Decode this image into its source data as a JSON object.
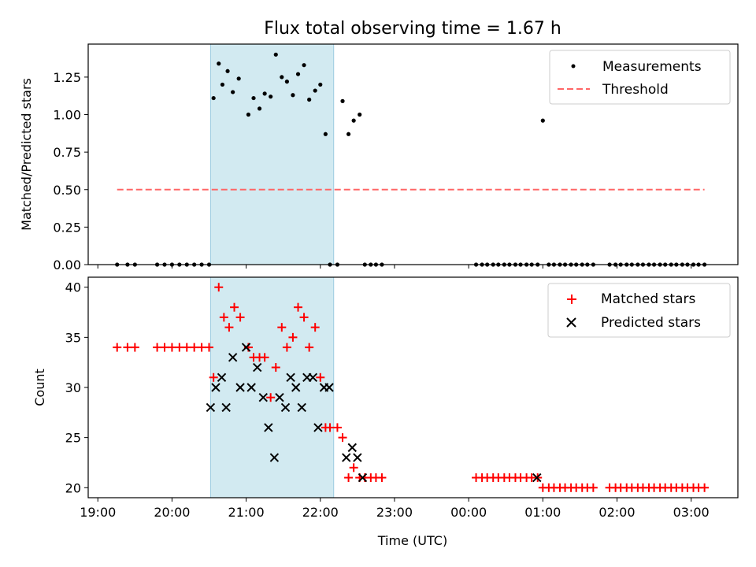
{
  "chart_data": {
    "type": "scatter",
    "title": "Flux total observing time = 1.67 h",
    "xlabel": "Time (UTC)",
    "x_unit": "hours since 19:00 UTC",
    "xlim": [
      -0.13,
      8.63
    ],
    "x_ticks": [
      {
        "value": 0,
        "label": "19:00"
      },
      {
        "value": 1,
        "label": "20:00"
      },
      {
        "value": 2,
        "label": "21:00"
      },
      {
        "value": 3,
        "label": "22:00"
      },
      {
        "value": 4,
        "label": "23:00"
      },
      {
        "value": 5,
        "label": "00:00"
      },
      {
        "value": 6,
        "label": "01:00"
      },
      {
        "value": 7,
        "label": "02:00"
      },
      {
        "value": 8,
        "label": "03:00"
      }
    ],
    "shaded_region": {
      "x_start": 1.52,
      "x_end": 3.18,
      "color": "#add8e6"
    },
    "top": {
      "ylabel": "Matched/Predicted stars",
      "ylim": [
        0,
        1.47
      ],
      "y_ticks": [
        {
          "value": 0,
          "label": "0.00"
        },
        {
          "value": 0.25,
          "label": "0.25"
        },
        {
          "value": 0.5,
          "label": "0.50"
        },
        {
          "value": 0.75,
          "label": "0.75"
        },
        {
          "value": 1.0,
          "label": "1.00"
        },
        {
          "value": 1.25,
          "label": "1.25"
        }
      ],
      "series": [
        {
          "name": "Measurements",
          "color": "#000000",
          "x": [
            0.26,
            0.4,
            0.5,
            0.8,
            0.9,
            1.0,
            1.1,
            1.2,
            1.3,
            1.4,
            1.5,
            1.56,
            1.63,
            1.68,
            1.75,
            1.82,
            1.9,
            2.03,
            2.1,
            2.18,
            2.25,
            2.33,
            2.4,
            2.48,
            2.55,
            2.63,
            2.7,
            2.78,
            2.85,
            2.93,
            3.0,
            3.07,
            3.13,
            3.23,
            3.3,
            3.38,
            3.45,
            3.53,
            3.6,
            3.68,
            3.75,
            3.83,
            5.1,
            5.18,
            5.25,
            5.33,
            5.4,
            5.48,
            5.55,
            5.63,
            5.7,
            5.78,
            5.85,
            5.93,
            6.0,
            6.08,
            6.15,
            6.23,
            6.3,
            6.38,
            6.45,
            6.53,
            6.6,
            6.68,
            6.9,
            6.98,
            7.05,
            7.13,
            7.2,
            7.28,
            7.35,
            7.43,
            7.5,
            7.58,
            7.65,
            7.73,
            7.8,
            7.88,
            7.95,
            8.03,
            8.1,
            8.18
          ],
          "y": [
            0,
            0,
            0,
            0,
            0,
            0,
            0,
            0,
            0,
            0,
            0,
            1.11,
            1.34,
            1.2,
            1.29,
            1.15,
            1.24,
            1.0,
            1.11,
            1.04,
            1.14,
            1.12,
            1.4,
            1.25,
            1.22,
            1.13,
            1.27,
            1.33,
            1.1,
            1.16,
            1.2,
            0.87,
            0,
            0,
            1.09,
            0.87,
            0.96,
            1.0,
            0,
            0,
            0,
            0,
            0,
            0,
            0,
            0,
            0,
            0,
            0,
            0,
            0,
            0,
            0,
            0,
            0.96,
            0,
            0,
            0,
            0,
            0,
            0,
            0,
            0,
            0,
            0,
            0,
            0,
            0,
            0,
            0,
            0,
            0,
            0,
            0,
            0,
            0,
            0,
            0,
            0,
            0,
            0,
            0
          ]
        },
        {
          "name": "Threshold",
          "color": "#ff6666",
          "style": "dashed",
          "x": [
            0.26,
            8.18
          ],
          "y": [
            0.5,
            0.5
          ]
        }
      ]
    },
    "bottom": {
      "ylabel": "Count",
      "ylim": [
        19,
        41
      ],
      "y_ticks": [
        {
          "value": 20,
          "label": "20"
        },
        {
          "value": 25,
          "label": "25"
        },
        {
          "value": 30,
          "label": "30"
        },
        {
          "value": 35,
          "label": "35"
        },
        {
          "value": 40,
          "label": "40"
        }
      ],
      "series": [
        {
          "name": "Matched stars",
          "color": "#ff0000",
          "marker": "+",
          "x": [
            0.26,
            0.4,
            0.5,
            0.8,
            0.9,
            1.0,
            1.1,
            1.2,
            1.3,
            1.4,
            1.5,
            1.56,
            1.63,
            1.7,
            1.77,
            1.84,
            1.92,
            2.03,
            2.1,
            2.18,
            2.25,
            2.33,
            2.4,
            2.48,
            2.55,
            2.63,
            2.7,
            2.78,
            2.85,
            2.93,
            3.0,
            3.07,
            3.13,
            3.23,
            3.3,
            3.38,
            3.45,
            3.53,
            3.6,
            3.68,
            3.75,
            3.83,
            5.1,
            5.18,
            5.25,
            5.33,
            5.4,
            5.48,
            5.55,
            5.63,
            5.7,
            5.78,
            5.85,
            5.93,
            6.0,
            6.08,
            6.15,
            6.23,
            6.3,
            6.38,
            6.45,
            6.53,
            6.6,
            6.68,
            6.9,
            6.98,
            7.05,
            7.13,
            7.2,
            7.28,
            7.35,
            7.43,
            7.5,
            7.58,
            7.65,
            7.73,
            7.8,
            7.88,
            7.95,
            8.03,
            8.1,
            8.18
          ],
          "y": [
            34,
            34,
            34,
            34,
            34,
            34,
            34,
            34,
            34,
            34,
            34,
            31,
            40,
            37,
            36,
            38,
            37,
            34,
            33,
            33,
            33,
            29,
            32,
            36,
            34,
            35,
            38,
            37,
            34,
            36,
            31,
            26,
            26,
            26,
            25,
            21,
            22,
            21,
            21,
            21,
            21,
            21,
            21,
            21,
            21,
            21,
            21,
            21,
            21,
            21,
            21,
            21,
            21,
            21,
            20,
            20,
            20,
            20,
            20,
            20,
            20,
            20,
            20,
            20,
            20,
            20,
            20,
            20,
            20,
            20,
            20,
            20,
            20,
            20,
            20,
            20,
            20,
            20,
            20,
            20,
            20,
            20
          ]
        },
        {
          "name": "Predicted stars",
          "color": "#000000",
          "marker": "x",
          "x": [
            1.52,
            1.59,
            1.67,
            1.73,
            1.82,
            1.92,
            2.0,
            2.07,
            2.15,
            2.23,
            2.3,
            2.38,
            2.45,
            2.53,
            2.6,
            2.67,
            2.75,
            2.82,
            2.9,
            2.97,
            3.05,
            3.12,
            3.35,
            3.43,
            3.5,
            3.57,
            5.92
          ],
          "y": [
            28,
            30,
            31,
            28,
            33,
            30,
            34,
            30,
            32,
            29,
            26,
            23,
            29,
            28,
            31,
            30,
            28,
            31,
            31,
            26,
            30,
            30,
            23,
            24,
            23,
            21,
            21
          ]
        }
      ]
    }
  }
}
